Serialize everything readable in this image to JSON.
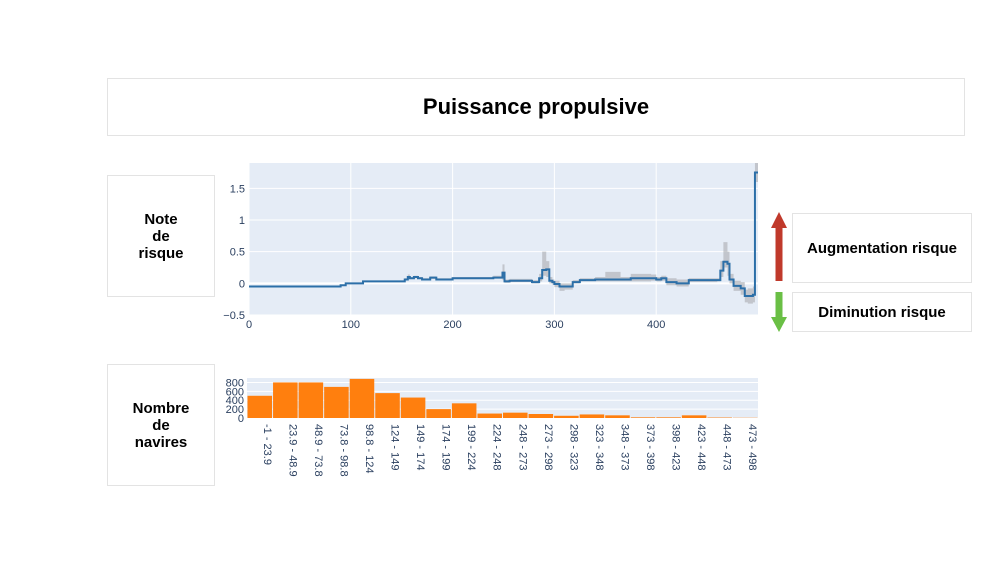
{
  "title": "Puissance propulsive",
  "note_label": "Note\nde\nrisque",
  "count_label": "Nombre\nde\nnavires",
  "legend": {
    "increase": "Augmentation risque",
    "decrease": "Diminution risque",
    "increase_color": "#c0392b",
    "decrease_color": "#6abf45"
  },
  "chart_data": [
    {
      "type": "line",
      "title": "",
      "xlabel": "",
      "ylabel": "",
      "xlim": [
        0,
        500
      ],
      "ylim": [
        -0.5,
        1.9
      ],
      "xticks": [
        0,
        100,
        200,
        300,
        400
      ],
      "yticks": [
        -0.5,
        0,
        0.5,
        1,
        1.5
      ],
      "ytick_labels": [
        "−0.5",
        "0",
        "0.5",
        "1",
        "1.5"
      ],
      "grid": true,
      "line_color": "#2c6fa8",
      "band_color": "#b5b8be",
      "series": [
        {
          "x": [
            0,
            70,
            90,
            95,
            108,
            112,
            150,
            153,
            156,
            158,
            162,
            166,
            170,
            178,
            184,
            190,
            200,
            230,
            240,
            249,
            251,
            256,
            270,
            278,
            285,
            288,
            292,
            295,
            298,
            300,
            305,
            310,
            318,
            325,
            340,
            350,
            365,
            375,
            395,
            400,
            405,
            410,
            420,
            432,
            460,
            463,
            466,
            470,
            472,
            476,
            483,
            487,
            490,
            495,
            497,
            500
          ],
          "y": [
            -0.05,
            -0.05,
            -0.03,
            0.0,
            0.0,
            0.03,
            0.03,
            0.06,
            0.1,
            0.08,
            0.1,
            0.08,
            0.06,
            0.09,
            0.06,
            0.06,
            0.08,
            0.08,
            0.09,
            0.17,
            0.03,
            0.04,
            0.04,
            0.02,
            0.08,
            0.21,
            0.22,
            0.04,
            0.02,
            -0.01,
            -0.05,
            -0.05,
            0.02,
            0.05,
            0.06,
            0.06,
            0.06,
            0.08,
            0.08,
            0.06,
            0.08,
            0.02,
            0.0,
            0.05,
            0.05,
            0.2,
            0.34,
            0.31,
            0.06,
            -0.04,
            -0.08,
            -0.2,
            -0.2,
            -0.18,
            1.75,
            1.75
          ],
          "lower": [
            -0.05,
            -0.05,
            -0.03,
            0.0,
            0.0,
            0.03,
            0.03,
            0.06,
            0.08,
            0.07,
            0.08,
            0.07,
            0.05,
            0.07,
            0.05,
            0.05,
            0.07,
            0.07,
            0.08,
            0.05,
            0.01,
            0.02,
            0.02,
            0.0,
            0.03,
            0.12,
            0.1,
            0.0,
            -0.02,
            -0.06,
            -0.12,
            -0.1,
            0.0,
            0.03,
            0.03,
            0.03,
            0.03,
            0.03,
            0.04,
            0.03,
            0.04,
            -0.03,
            -0.05,
            0.02,
            0.03,
            0.1,
            0.25,
            0.12,
            0.0,
            -0.12,
            -0.18,
            -0.3,
            -0.32,
            -0.3,
            1.6,
            1.6
          ],
          "upper": [
            -0.05,
            -0.05,
            -0.03,
            0.0,
            0.0,
            0.03,
            0.03,
            0.08,
            0.14,
            0.1,
            0.12,
            0.1,
            0.08,
            0.11,
            0.08,
            0.08,
            0.1,
            0.1,
            0.12,
            0.3,
            0.06,
            0.07,
            0.07,
            0.05,
            0.15,
            0.5,
            0.35,
            0.1,
            0.06,
            0.04,
            0.0,
            0.0,
            0.05,
            0.08,
            0.1,
            0.18,
            0.1,
            0.15,
            0.14,
            0.1,
            0.12,
            0.08,
            0.06,
            0.08,
            0.08,
            0.35,
            0.65,
            0.5,
            0.15,
            0.04,
            0.02,
            -0.1,
            -0.08,
            -0.05,
            1.9,
            1.9
          ]
        }
      ]
    },
    {
      "type": "bar",
      "title": "",
      "xlabel": "",
      "ylabel": "",
      "ylim": [
        0,
        900
      ],
      "yticks": [
        0,
        200,
        400,
        600,
        800
      ],
      "grid": true,
      "bar_color": "#ff7f0e",
      "categories": [
        "-1 - 23.9",
        "23.9 - 48.9",
        "48.9 - 73.8",
        "73.8 - 98.8",
        "98.8 - 124",
        "124 - 149",
        "149 - 174",
        "174 - 199",
        "199 - 224",
        "224 - 248",
        "248 - 273",
        "273 - 298",
        "298 - 323",
        "323 - 348",
        "348 - 373",
        "373 - 398",
        "398 - 423",
        "423 - 448",
        "448 - 473",
        "473 - 498"
      ],
      "values": [
        500,
        800,
        800,
        700,
        880,
        560,
        460,
        200,
        330,
        100,
        120,
        90,
        50,
        80,
        60,
        15,
        15,
        60,
        10,
        5
      ]
    }
  ]
}
